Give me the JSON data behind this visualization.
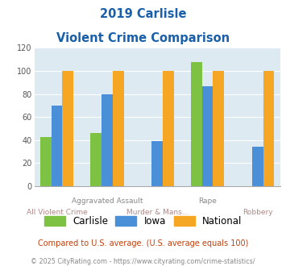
{
  "title_line1": "2019 Carlisle",
  "title_line2": "Violent Crime Comparison",
  "categories": [
    "All Violent Crime",
    "Aggravated Assault",
    "Murder & Mans...",
    "Rape",
    "Robbery"
  ],
  "series": {
    "Carlisle": [
      43,
      46,
      0,
      108,
      0
    ],
    "Iowa": [
      70,
      80,
      39,
      87,
      34
    ],
    "National": [
      100,
      100,
      100,
      100,
      100
    ]
  },
  "colors": {
    "Carlisle": "#7dc242",
    "Iowa": "#4a90d9",
    "National": "#f5a623"
  },
  "ylim": [
    0,
    120
  ],
  "yticks": [
    0,
    20,
    40,
    60,
    80,
    100,
    120
  ],
  "background_color": "#ddeaf2",
  "title_color": "#1a5faa",
  "footnote1": "Compared to U.S. average. (U.S. average equals 100)",
  "footnote2": "© 2025 CityRating.com - https://www.cityrating.com/crime-statistics/",
  "footnote1_color": "#c04010",
  "footnote2_color": "#888888",
  "top_xlabel_color": "#888888",
  "bottom_xlabel_color": "#b08888",
  "cat_top_labels": {
    "1": "Aggravated Assault",
    "3": "Rape"
  },
  "cat_bottom_labels": {
    "0": "All Violent Crime",
    "2": "Murder & Mans...",
    "4": "Robbery"
  }
}
